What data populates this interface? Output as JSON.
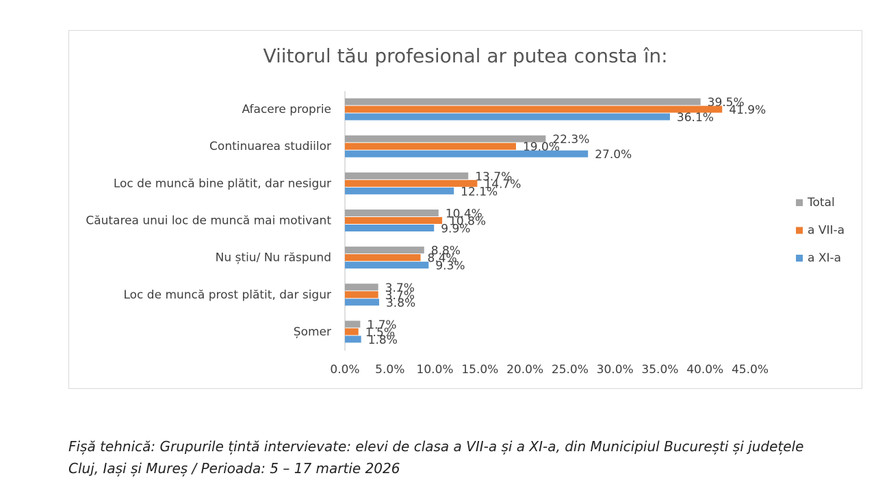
{
  "chart_data": {
    "type": "hbar",
    "title": "Viitorul tău profesional ar putea consta în:",
    "categories": [
      "Afacere proprie",
      "Continuarea studiilor",
      "Loc de muncă bine plătit, dar nesigur",
      "Căutarea unui loc de muncă mai motivant",
      "Nu știu/ Nu răspund",
      "Loc de muncă prost plătit, dar sigur",
      "Șomer"
    ],
    "series": [
      {
        "name": "Total",
        "color": "#a5a5a5",
        "values": [
          39.5,
          22.3,
          13.7,
          10.4,
          8.8,
          3.7,
          1.7
        ],
        "value_labels": [
          "39.5%",
          "22.3%",
          "13.7%",
          "10.4%",
          "8.8%",
          "3.7%",
          "1.7%"
        ]
      },
      {
        "name": "a VII-a",
        "color": "#ed7d31",
        "values": [
          41.9,
          19.0,
          14.7,
          10.8,
          8.4,
          3.7,
          1.5
        ],
        "value_labels": [
          "41.9%",
          "19.0%",
          "14.7%",
          "10.8%",
          "8.4%",
          "3.7%",
          "1.5%"
        ]
      },
      {
        "name": "a XI-a",
        "color": "#5b9bd5",
        "values": [
          36.1,
          27.0,
          12.1,
          9.9,
          9.3,
          3.8,
          1.8
        ],
        "value_labels": [
          "36.1%",
          "27.0%",
          "12.1%",
          "9.9%",
          "9.3%",
          "3.8%",
          "1.8%"
        ]
      }
    ],
    "xlim": [
      0,
      45
    ],
    "xticks": [
      {
        "value": 0,
        "label": "0.0%"
      },
      {
        "value": 5,
        "label": "5.0%"
      },
      {
        "value": 10,
        "label": "10.0%"
      },
      {
        "value": 15,
        "label": "15.0%"
      },
      {
        "value": 20,
        "label": "20.0%"
      },
      {
        "value": 25,
        "label": "25.0%"
      },
      {
        "value": 30,
        "label": "30.0%"
      },
      {
        "value": 35,
        "label": "35.0%"
      },
      {
        "value": 40,
        "label": "40.0%"
      },
      {
        "value": 45,
        "label": "45.0%"
      }
    ],
    "grid": false,
    "legend": "right"
  },
  "footnote": {
    "lines": [
      "Fișă tehnică: Grupurile țintă intervievate: elevi de clasa a VII-a și a XI-a, din Municipiul București și județele",
      "Cluj, Iași și Mureș / Perioada: 5 – 17 martie 2026"
    ]
  }
}
